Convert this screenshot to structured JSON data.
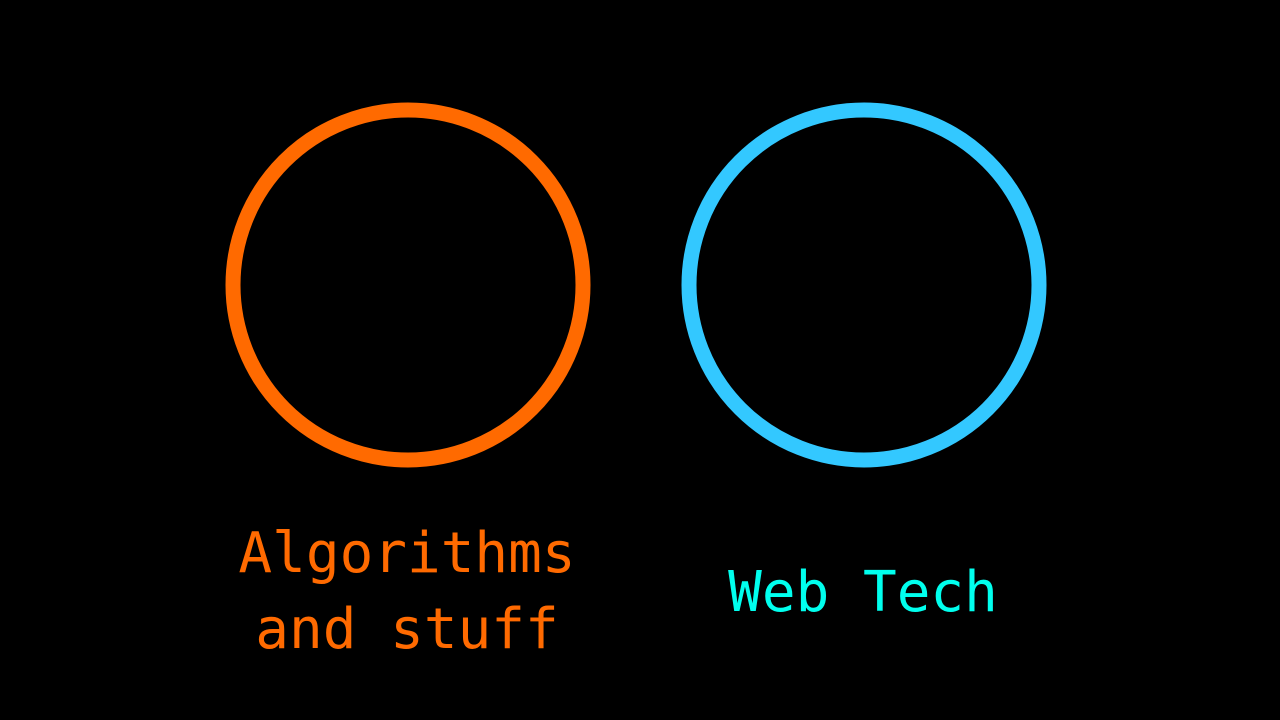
{
  "circles": [
    {
      "id": "left",
      "color": "#FF6A00",
      "label_color": "#FF6A00",
      "label_lines": [
        "Algorithms",
        "and stuff"
      ]
    },
    {
      "id": "right",
      "color": "#33C8FF",
      "label_color": "#00FFEE",
      "label_lines": [
        "Web Tech"
      ]
    }
  ],
  "background_color": "#000000"
}
